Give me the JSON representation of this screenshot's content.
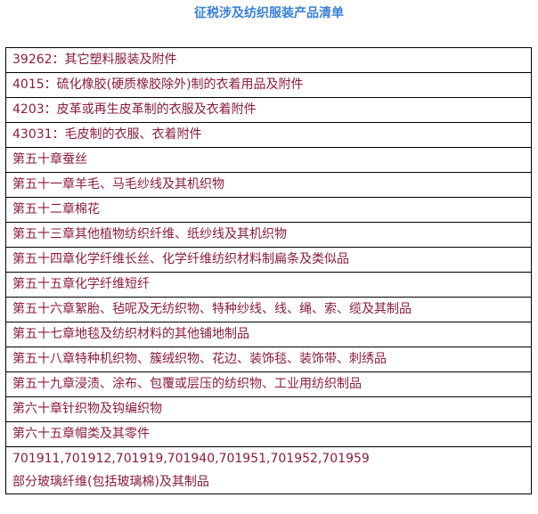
{
  "title": "征税涉及纺织服装产品清单",
  "rows": [
    "39262：其它塑料服装及附件",
    "4015：硫化橡胶(硬质橡胶除外)制的衣着用品及附件",
    "4203：皮革或再生皮革制的衣服及衣着附件",
    "43031：毛皮制的衣服、衣着附件",
    "第五十章蚕丝",
    "第五十一章羊毛、马毛纱线及其机织物",
    "第五十二章棉花",
    "第五十三章其他植物纺织纤维、纸纱线及其机织物",
    "第五十四章化学纤维长丝、化学纤维纺织材料制扁条及类似品",
    "第五十五章化学纤维短纤",
    "第五十六章絮胎、毡呢及无纺织物、特种纱线、线、绳、索、缆及其制品",
    "第五十七章地毯及纺织材料的其他铺地制品",
    "第五十八章特种机织物、簇绒织物、花边、装饰毯、装饰带、刺绣品",
    "第五十九章浸渍、涂布、包覆或层压的纺织物、工业用纺织制品",
    "第六十章针织物及钩编织物",
    "第六十五章帽类及其零件"
  ],
  "last_row": {
    "line1": "701911,701912,701919,701940,701951,701952,701959",
    "line2": "部分玻璃纤维(包括玻璃棉)及其制品"
  },
  "colors": {
    "title": "#3a80d8",
    "text": "#8a1c3c"
  }
}
